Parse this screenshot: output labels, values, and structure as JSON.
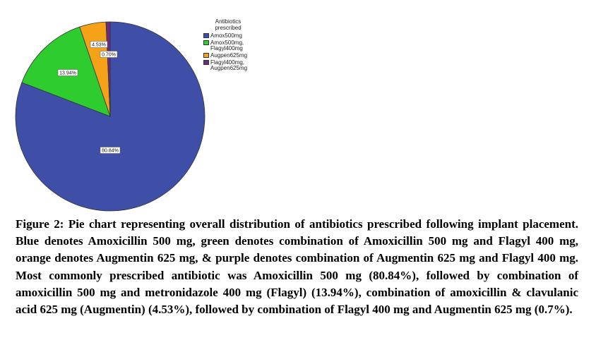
{
  "chart_data": {
    "type": "pie",
    "legend_title": "Antibiotics\nprescribed",
    "legend_position": "top-right",
    "slices": [
      {
        "label": "Amox500mg",
        "value": 80.84,
        "value_label": "80.84%",
        "color": "#3f4fa8"
      },
      {
        "label": "Amox500mg,\nFlagyl400mg",
        "value": 13.94,
        "value_label": "13.94%",
        "color": "#2ecc2e"
      },
      {
        "label": "Augpen625mg",
        "value": 4.53,
        "value_label": "4.53%",
        "color": "#f5a219"
      },
      {
        "label": "Flagyl400mg,\nAugpen625mg",
        "value": 0.7,
        "value_label": "0.70%",
        "color": "#6b2c7a"
      }
    ]
  },
  "caption": "Figure 2: Pie chart representing overall distribution of antibiotics prescribed following implant placement. Blue denotes Amoxicillin 500 mg, green denotes combination of Amoxicillin 500 mg and Flagyl 400 mg, orange denotes Augmentin 625 mg, & purple denotes combination of Augmentin 625 mg and Flagyl 400 mg. Most commonly prescribed antibiotic was Amoxicillin 500 mg (80.84%), followed by combination of amoxicillin 500 mg and metronidazole 400 mg (Flagyl) (13.94%), combination of amoxicillin & clavulanic acid 625 mg (Augmentin) (4.53%), followed by combination of Flagyl 400 mg and Augmentin 625 mg (0.7%)."
}
